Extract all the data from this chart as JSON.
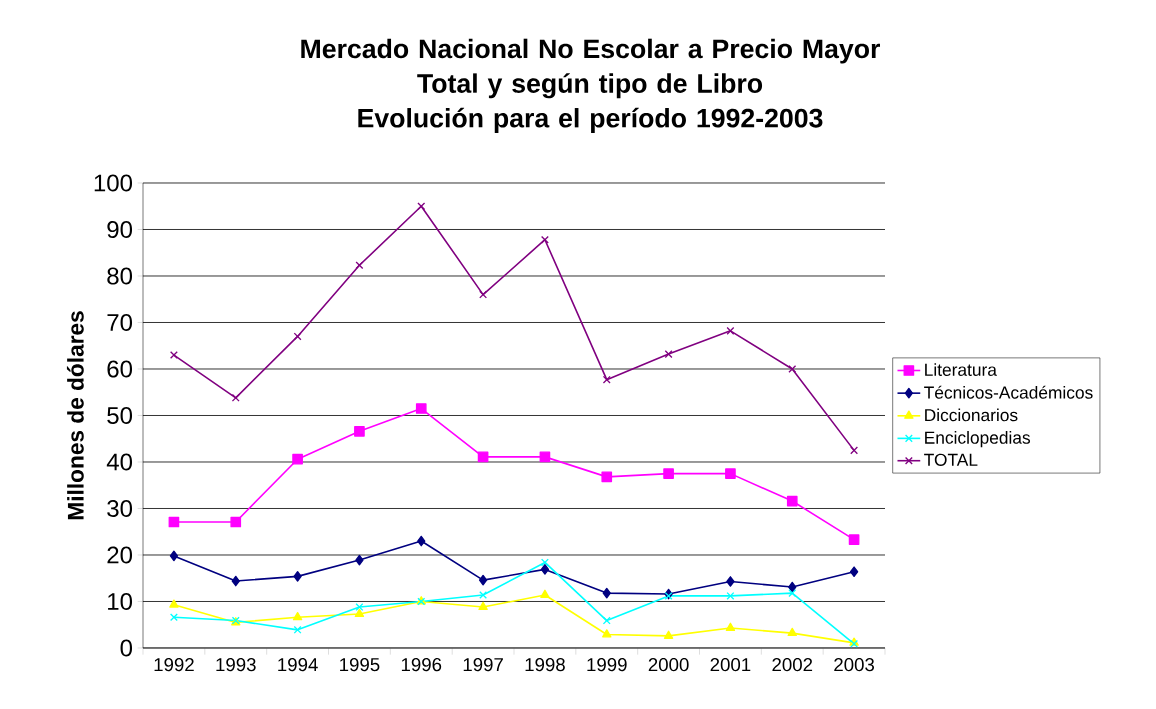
{
  "chart_data": {
    "type": "line",
    "title": "Mercado Nacional No Escolar a Precio Mayor\nTotal y según tipo de Libro\nEvolución para el período 1992-2003",
    "ylabel": "Millones de dólares",
    "categories": [
      "1992",
      "1993",
      "1994",
      "1995",
      "1996",
      "1997",
      "1998",
      "1999",
      "2000",
      "2001",
      "2002",
      "2003"
    ],
    "series": [
      {
        "name": "Literatura",
        "color": "#ff00ff",
        "marker": "square",
        "values": [
          27.1,
          27.1,
          40.6,
          46.6,
          51.5,
          41.1,
          41.1,
          36.8,
          37.5,
          37.5,
          31.6,
          23.3
        ]
      },
      {
        "name": "Técnicos-Académicos",
        "color": "#000080",
        "marker": "diamond",
        "values": [
          19.8,
          14.4,
          15.4,
          18.9,
          23.0,
          14.6,
          16.9,
          11.8,
          11.6,
          14.3,
          13.1,
          16.4
        ]
      },
      {
        "name": "Diccionarios",
        "color": "#ffff00",
        "marker": "triangle",
        "values": [
          9.3,
          5.5,
          6.6,
          7.3,
          10.0,
          8.8,
          11.4,
          2.9,
          2.6,
          4.3,
          3.2,
          1.1
        ]
      },
      {
        "name": "Enciclopedias",
        "color": "#00ffff",
        "marker": "cross",
        "values": [
          6.6,
          5.9,
          3.9,
          8.8,
          10.0,
          11.4,
          18.4,
          5.9,
          11.2,
          11.2,
          11.8,
          0.9
        ]
      },
      {
        "name": "TOTAL",
        "color": "#800080",
        "marker": "cross",
        "values": [
          63.0,
          53.8,
          67.0,
          82.3,
          95.0,
          76.0,
          87.8,
          57.7,
          63.2,
          68.2,
          60.0,
          42.5
        ]
      }
    ],
    "ylim": [
      0,
      100
    ],
    "yticks": [
      0,
      10,
      20,
      30,
      40,
      50,
      60,
      70,
      80,
      90,
      100
    ],
    "grid": "y",
    "legend": "right",
    "line_style": "solid"
  }
}
